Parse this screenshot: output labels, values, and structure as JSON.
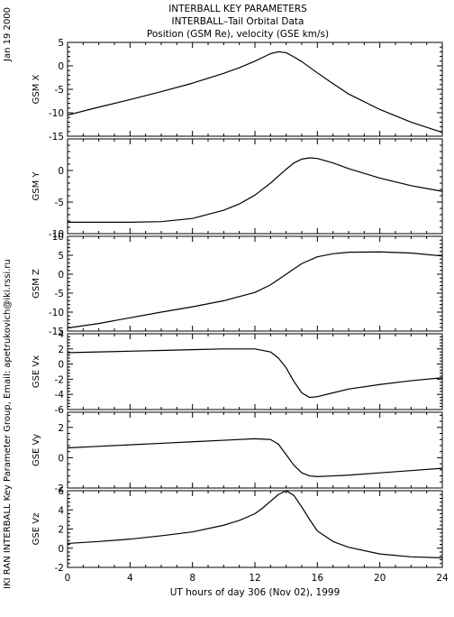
{
  "header": {
    "line1": "INTERBALL KEY PARAMETERS",
    "line2": "INTERBALL–Tail Orbital Data",
    "line3": "Position (GSM Re), velocity (GSE km/s)"
  },
  "side_date": "Jan 19 2000",
  "side_credit": "IKI RAN INTERBALL Key Parameter Group, Email: apetrukovich@iki.rssi.ru",
  "chart_data": [
    {
      "type": "line",
      "ylabel": "GSM X",
      "ylim": [
        -15,
        5
      ],
      "yticks": [
        -15,
        -10,
        -5,
        0,
        5
      ],
      "x": [
        0,
        2,
        4,
        6,
        8,
        10,
        11,
        12,
        12.5,
        13,
        13.5,
        14,
        14.5,
        15,
        16,
        17,
        18,
        20,
        22,
        24
      ],
      "y": [
        -10.5,
        -8.8,
        -7.2,
        -5.5,
        -3.7,
        -1.6,
        -0.4,
        1.0,
        1.8,
        2.6,
        3.0,
        2.8,
        1.9,
        0.9,
        -1.5,
        -3.8,
        -6.0,
        -9.3,
        -12.0,
        -14.2
      ]
    },
    {
      "type": "line",
      "ylabel": "GSM Y",
      "ylim": [
        -10,
        5
      ],
      "yticks": [
        -10,
        -5,
        0
      ],
      "x": [
        0,
        2,
        4,
        6,
        8,
        10,
        11,
        12,
        13,
        14,
        14.5,
        15,
        15.5,
        16,
        17,
        18,
        20,
        22,
        24
      ],
      "y": [
        -8.2,
        -8.2,
        -8.2,
        -8.1,
        -7.6,
        -6.3,
        -5.3,
        -3.9,
        -2.0,
        0.2,
        1.2,
        1.8,
        2.0,
        1.9,
        1.2,
        0.3,
        -1.2,
        -2.4,
        -3.3
      ]
    },
    {
      "type": "line",
      "ylabel": "GSM Z",
      "ylim": [
        -15,
        10
      ],
      "yticks": [
        -15,
        -10,
        -5,
        0,
        5,
        10
      ],
      "x": [
        0,
        2,
        4,
        6,
        8,
        10,
        12,
        13,
        14,
        15,
        16,
        17,
        18,
        20,
        22,
        24
      ],
      "y": [
        -14.2,
        -13.0,
        -11.5,
        -10.0,
        -8.6,
        -7.0,
        -4.8,
        -2.8,
        0.0,
        2.8,
        4.6,
        5.4,
        5.8,
        5.9,
        5.6,
        4.8
      ]
    },
    {
      "type": "line",
      "ylabel": "GSE Vx",
      "ylim": [
        -6,
        4
      ],
      "yticks": [
        -6,
        -4,
        -2,
        0,
        2,
        4
      ],
      "x": [
        0,
        2,
        4,
        6,
        8,
        10,
        12,
        13,
        13.5,
        14,
        14.5,
        15,
        15.5,
        16,
        17,
        18,
        20,
        22,
        24
      ],
      "y": [
        1.5,
        1.6,
        1.7,
        1.8,
        1.9,
        2.0,
        2.0,
        1.6,
        0.8,
        -0.5,
        -2.3,
        -3.8,
        -4.4,
        -4.3,
        -3.8,
        -3.3,
        -2.7,
        -2.2,
        -1.8
      ]
    },
    {
      "type": "line",
      "ylabel": "GSE Vy",
      "ylim": [
        -2,
        3
      ],
      "yticks": [
        -2,
        0,
        2
      ],
      "x": [
        0,
        2,
        4,
        6,
        8,
        10,
        12,
        13,
        13.5,
        14,
        14.5,
        15,
        15.5,
        16,
        17,
        18,
        20,
        22,
        24
      ],
      "y": [
        0.65,
        0.75,
        0.85,
        0.95,
        1.05,
        1.15,
        1.25,
        1.2,
        0.9,
        0.2,
        -0.5,
        -1.0,
        -1.2,
        -1.25,
        -1.2,
        -1.15,
        -1.0,
        -0.85,
        -0.7
      ]
    },
    {
      "type": "line",
      "ylabel": "GSE Vz",
      "ylim": [
        -2,
        6
      ],
      "yticks": [
        -2,
        0,
        2,
        4,
        6
      ],
      "x": [
        0,
        2,
        4,
        6,
        8,
        10,
        11,
        12,
        12.5,
        13,
        13.5,
        14,
        14.5,
        15,
        15.5,
        16,
        17,
        18,
        20,
        22,
        24
      ],
      "y": [
        0.5,
        0.7,
        0.95,
        1.3,
        1.7,
        2.4,
        2.9,
        3.6,
        4.2,
        4.9,
        5.6,
        6.0,
        5.5,
        4.3,
        3.0,
        1.8,
        0.7,
        0.1,
        -0.6,
        -0.9,
        -1.0
      ]
    }
  ],
  "xaxis": {
    "label": "UT hours of day 306 (Nov 02), 1999",
    "ticks": [
      0,
      4,
      8,
      12,
      16,
      20,
      24
    ],
    "xlim": [
      0,
      24
    ]
  }
}
